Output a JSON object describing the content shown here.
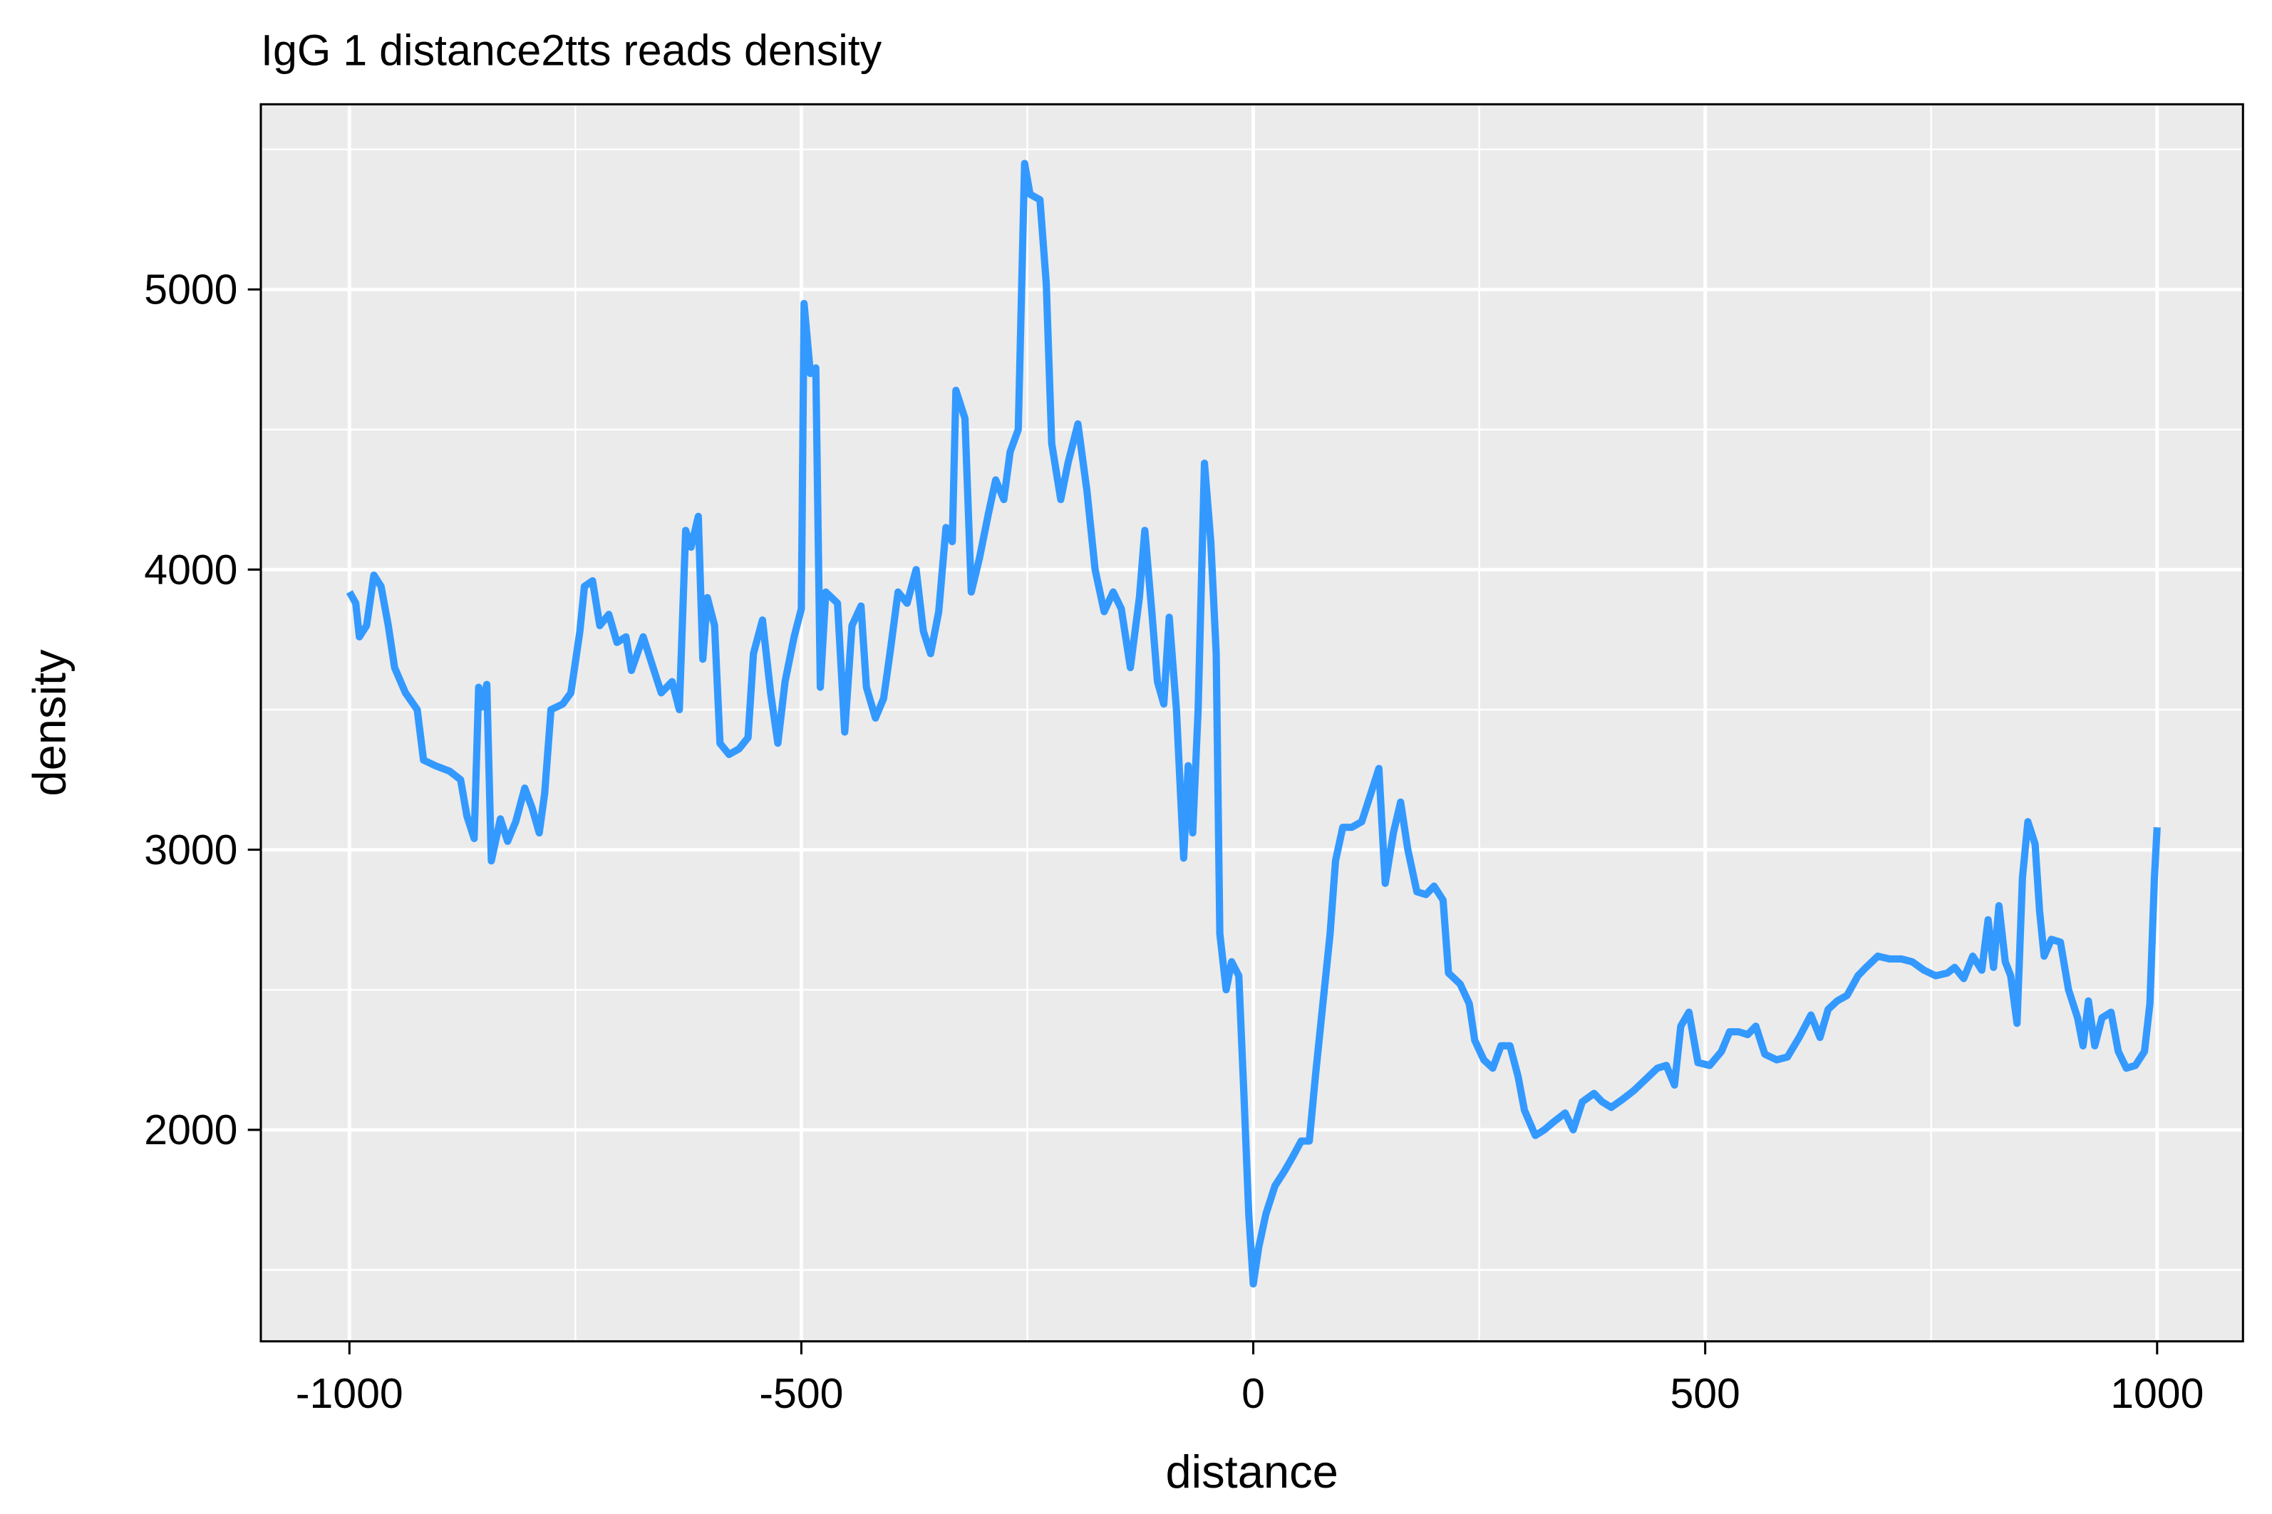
{
  "chart_data": {
    "type": "line",
    "title": "IgG 1 distance2tts reads density",
    "xlabel": "distance",
    "ylabel": "density",
    "xlim": [
      -1098,
      1095
    ],
    "ylim": [
      1245,
      5661
    ],
    "xticks": [
      -1000,
      -500,
      0,
      500,
      1000
    ],
    "yticks": [
      2000,
      3000,
      4000,
      5000
    ],
    "grid": true,
    "series": [
      {
        "name": "IgG 1",
        "color": "#3399ff",
        "x": [
          -1000,
          -993,
          -989,
          -981,
          -973,
          -965,
          -957,
          -950,
          -938,
          -925,
          -918,
          -905,
          -889,
          -877,
          -870,
          -862,
          -857,
          -853,
          -848,
          -843,
          -833,
          -825,
          -816,
          -806,
          -798,
          -790,
          -784,
          -777,
          -764,
          -755,
          -745,
          -740,
          -731,
          -723,
          -713,
          -704,
          -694,
          -688,
          -675,
          -665,
          -655,
          -643,
          -635,
          -628,
          -622,
          -614,
          -609,
          -604,
          -596,
          -590,
          -580,
          -569,
          -559,
          -553,
          -543,
          -534,
          -526,
          -518,
          -508,
          -500,
          -497,
          -490,
          -484,
          -479,
          -473,
          -460,
          -452,
          -444,
          -434,
          -428,
          -418,
          -409,
          -402,
          -393,
          -383,
          -373,
          -365,
          -357,
          -348,
          -340,
          -333,
          -329,
          -319,
          -312,
          -303,
          -293,
          -285,
          -276,
          -269,
          -260,
          -253,
          -247,
          -236,
          -229,
          -223,
          -213,
          -205,
          -194,
          -184,
          -175,
          -165,
          -155,
          -146,
          -136,
          -126,
          -120,
          -112,
          -106,
          -99,
          -93,
          -85,
          -77,
          -72,
          -67,
          -61,
          -54,
          -47,
          -41,
          -37,
          -30,
          -24,
          -16,
          -10,
          -5,
          0,
          6,
          14,
          24,
          34,
          43,
          53,
          62,
          69,
          77,
          85,
          91,
          99,
          109,
          120,
          130,
          139,
          146,
          155,
          163,
          171,
          181,
          191,
          200,
          210,
          216,
          229,
          239,
          245,
          255,
          265,
          274,
          284,
          293,
          300,
          312,
          322,
          333,
          345,
          354,
          364,
          377,
          386,
          396,
          409,
          421,
          434,
          447,
          457,
          466,
          473,
          482,
          492,
          505,
          518,
          527,
          537,
          547,
          556,
          566,
          579,
          591,
          604,
          617,
          627,
          636,
          646,
          657,
          669,
          678,
          691,
          704,
          717,
          729,
          742,
          755,
          768,
          776,
          786,
          796,
          806,
          813,
          819,
          825,
          832,
          838,
          845,
          851,
          857,
          865,
          870,
          875,
          883,
          893,
          902,
          912,
          918,
          924,
          931,
          939,
          949,
          957,
          966,
          976,
          986,
          992,
          997,
          1000
        ],
        "values": [
          3920,
          3880,
          3760,
          3800,
          3980,
          3940,
          3800,
          3650,
          3560,
          3500,
          3320,
          3300,
          3280,
          3250,
          3120,
          3040,
          3580,
          3510,
          3590,
          2960,
          3110,
          3030,
          3100,
          3220,
          3150,
          3060,
          3200,
          3500,
          3520,
          3560,
          3780,
          3940,
          3960,
          3800,
          3840,
          3740,
          3760,
          3640,
          3760,
          3660,
          3560,
          3600,
          3500,
          4140,
          4080,
          4190,
          3680,
          3900,
          3800,
          3380,
          3340,
          3360,
          3400,
          3700,
          3820,
          3560,
          3380,
          3600,
          3760,
          3860,
          4950,
          4700,
          4720,
          3580,
          3920,
          3880,
          3420,
          3800,
          3870,
          3580,
          3470,
          3540,
          3700,
          3920,
          3880,
          4000,
          3780,
          3700,
          3850,
          4150,
          4100,
          4640,
          4540,
          3920,
          4040,
          4200,
          4320,
          4250,
          4420,
          4500,
          5450,
          5340,
          5320,
          5020,
          4450,
          4250,
          4380,
          4520,
          4280,
          4000,
          3850,
          3920,
          3860,
          3650,
          3900,
          4140,
          3840,
          3600,
          3520,
          3830,
          3500,
          2970,
          3300,
          3060,
          3500,
          4380,
          4100,
          3700,
          2700,
          2500,
          2600,
          2550,
          2100,
          1700,
          1450,
          1580,
          1700,
          1800,
          1850,
          1900,
          1960,
          1960,
          2200,
          2450,
          2700,
          2960,
          3080,
          3080,
          3100,
          3200,
          3290,
          2880,
          3060,
          3170,
          3000,
          2850,
          2840,
          2870,
          2820,
          2560,
          2520,
          2450,
          2320,
          2250,
          2220,
          2300,
          2300,
          2190,
          2070,
          1980,
          2000,
          2030,
          2060,
          2000,
          2100,
          2130,
          2100,
          2080,
          2110,
          2140,
          2180,
          2220,
          2230,
          2160,
          2370,
          2420,
          2240,
          2230,
          2280,
          2350,
          2350,
          2340,
          2370,
          2270,
          2250,
          2260,
          2330,
          2410,
          2330,
          2430,
          2460,
          2480,
          2550,
          2580,
          2620,
          2610,
          2610,
          2600,
          2570,
          2550,
          2560,
          2580,
          2540,
          2620,
          2570,
          2750,
          2580,
          2800,
          2600,
          2550,
          2380,
          2900,
          3100,
          3020,
          2780,
          2620,
          2680,
          2670,
          2500,
          2400,
          2300,
          2460,
          2300,
          2400,
          2420,
          2280,
          2220,
          2230,
          2280,
          2450,
          2900,
          3080
        ]
      }
    ]
  }
}
